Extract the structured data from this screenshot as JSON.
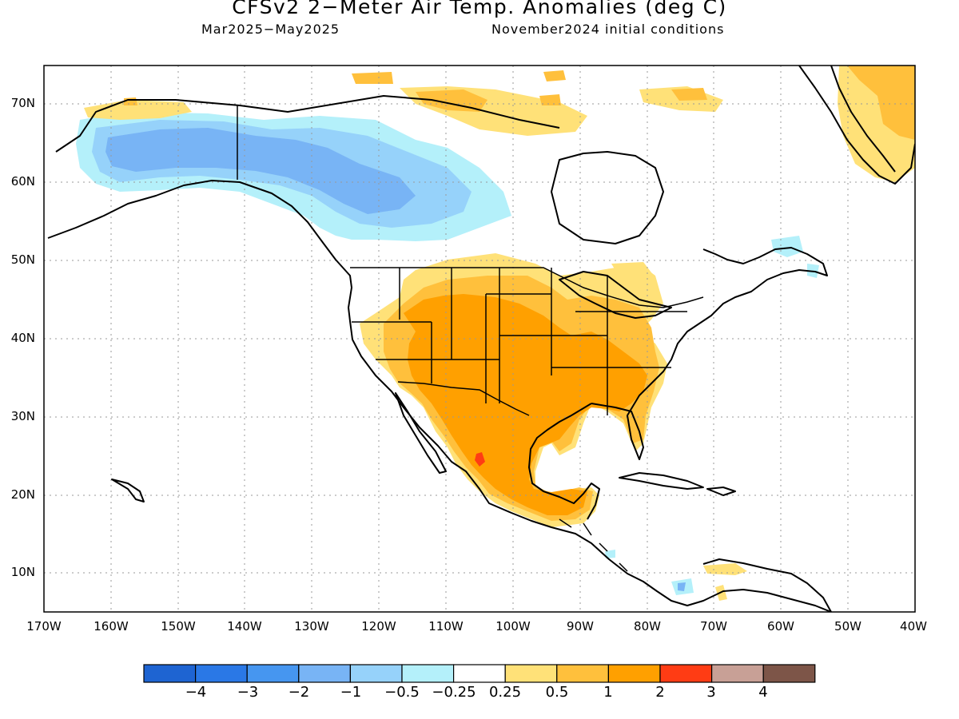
{
  "title": "CFSv2 2−Meter Air Temp. Anomalies (deg C)",
  "subtitle_left": "Mar2025−May2025",
  "subtitle_right": "November2024 initial conditions",
  "lat_labels": [
    "70N",
    "60N",
    "50N",
    "40N",
    "30N",
    "20N",
    "10N"
  ],
  "lon_labels": [
    "170W",
    "160W",
    "150W",
    "140W",
    "130W",
    "120W",
    "110W",
    "100W",
    "90W",
    "80W",
    "70W",
    "60W",
    "50W",
    "40W"
  ],
  "colorbar": {
    "colors": [
      "#1e64d2",
      "#2a78e6",
      "#4696f0",
      "#78b4f5",
      "#96d2fa",
      "#b4f0fa",
      "#ffffff",
      "#ffe178",
      "#ffc03c",
      "#ffa000",
      "#ff3c14",
      "#c8a096",
      "#7d5548"
    ],
    "labels": [
      "−4",
      "−3",
      "−2",
      "−1",
      "−0.5",
      "−0.25",
      "0.25",
      "0.5",
      "1",
      "2",
      "3",
      "4"
    ]
  },
  "legend_colors": {
    "cold_strong": "#78b4f5",
    "cold_moderate": "#96d2fa",
    "cold_weak": "#b4f0fa",
    "warm_weak": "#ffe178",
    "warm_moderate": "#ffc03c",
    "warm_strong": "#ffa000",
    "warm_extreme": "#ff3c14"
  }
}
